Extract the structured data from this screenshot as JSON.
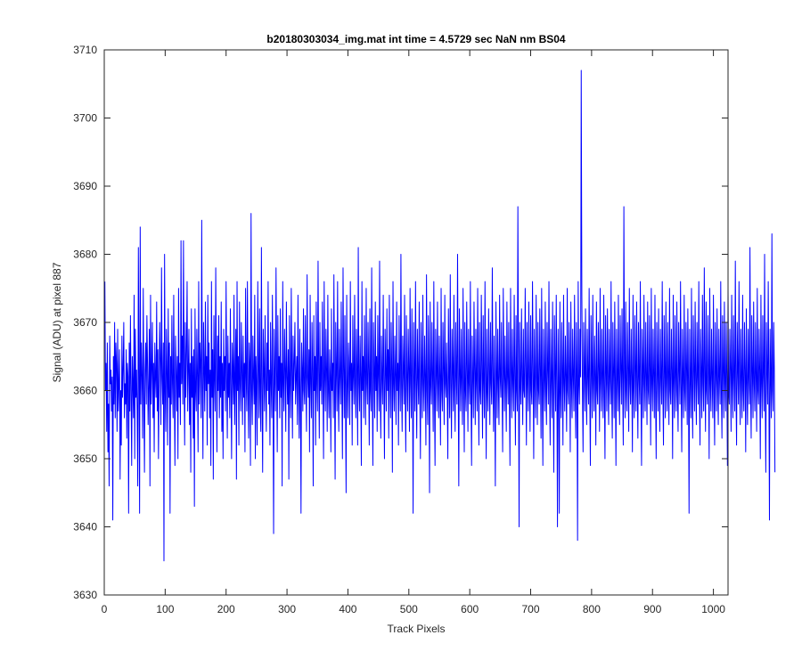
{
  "chart_data": {
    "type": "line",
    "title": "b20180303034_img.mat int time = 4.5729 sec  NaN nm BS04",
    "xlabel": "Track Pixels",
    "ylabel": "Signal (ADU) at pixel 887",
    "xlim": [
      0,
      1024
    ],
    "ylim": [
      3630,
      3710
    ],
    "xticks": [
      0,
      100,
      200,
      300,
      400,
      500,
      600,
      700,
      800,
      900,
      1000
    ],
    "yticks": [
      3630,
      3640,
      3650,
      3660,
      3670,
      3680,
      3690,
      3700,
      3710
    ],
    "xtick_labels": [
      "0",
      "100",
      "200",
      "300",
      "400",
      "500",
      "600",
      "700",
      "800",
      "900",
      "1000"
    ],
    "ytick_labels": [
      "3630",
      "3640",
      "3650",
      "3660",
      "3670",
      "3680",
      "3690",
      "3700",
      "3710"
    ],
    "grid": false,
    "line_color": "#0000ff",
    "series": [
      {
        "x_start": 1,
        "x_step": 1,
        "values": [
          3676,
          3660,
          3664,
          3654,
          3667,
          3651,
          3658,
          3646,
          3668,
          3661,
          3663,
          3657,
          3662,
          3641,
          3665,
          3658,
          3670,
          3656,
          3667,
          3664,
          3654,
          3669,
          3657,
          3661,
          3666,
          3647,
          3660,
          3652,
          3668,
          3659,
          3663,
          3670,
          3656,
          3661,
          3658,
          3666,
          3653,
          3664,
          3662,
          3642,
          3667,
          3657,
          3671,
          3660,
          3649,
          3665,
          3661,
          3656,
          3674,
          3650,
          3669,
          3659,
          3663,
          3657,
          3646,
          3681,
          3662,
          3642,
          3684,
          3658,
          3667,
          3662,
          3653,
          3675,
          3660,
          3648,
          3663,
          3667,
          3658,
          3671,
          3664,
          3655,
          3661,
          3669,
          3646,
          3674,
          3658,
          3663,
          3670,
          3656,
          3664,
          3651,
          3667,
          3662,
          3659,
          3673,
          3657,
          3666,
          3650,
          3661,
          3670,
          3664,
          3655,
          3678,
          3662,
          3658,
          3667,
          3635,
          3680,
          3660,
          3654,
          3669,
          3663,
          3652,
          3672,
          3659,
          3667,
          3642,
          3665,
          3658,
          3671,
          3661,
          3656,
          3674,
          3660,
          3649,
          3668,
          3663,
          3657,
          3665,
          3650,
          3675,
          3659,
          3664,
          3655,
          3682,
          3661,
          3668,
          3658,
          3682,
          3663,
          3652,
          3670,
          3659,
          3666,
          3676,
          3657,
          3663,
          3669,
          3655,
          3664,
          3648,
          3672,
          3659,
          3665,
          3653,
          3666,
          3643,
          3672,
          3660,
          3657,
          3669,
          3662,
          3651,
          3676,
          3658,
          3667,
          3664,
          3656,
          3685,
          3661,
          3650,
          3670,
          3663,
          3657,
          3673,
          3660,
          3665,
          3652,
          3674,
          3661,
          3667,
          3656,
          3663,
          3649,
          3676,
          3659,
          3666,
          3647,
          3671,
          3662,
          3657,
          3678,
          3663,
          3651,
          3668,
          3660,
          3671,
          3656,
          3665,
          3659,
          3673,
          3654,
          3664,
          3650,
          3669,
          3660,
          3665,
          3657,
          3676,
          3662,
          3653,
          3668,
          3659,
          3664,
          3656,
          3672,
          3661,
          3650,
          3667,
          3663,
          3658,
          3674,
          3655,
          3662,
          3669,
          3647,
          3676,
          3660,
          3665,
          3652,
          3673,
          3661,
          3657,
          3670,
          3663,
          3655,
          3668,
          3659,
          3664,
          3651,
          3675,
          3662,
          3657,
          3676,
          3660,
          3653,
          3667,
          3664,
          3649,
          3686,
          3660,
          3655,
          3668,
          3662,
          3658,
          3674,
          3650,
          3665,
          3661,
          3652,
          3676,
          3663,
          3656,
          3672,
          3659,
          3654,
          3681,
          3660,
          3648,
          3669,
          3663,
          3657,
          3671,
          3661,
          3654,
          3667,
          3660,
          3676,
          3658,
          3663,
          3652,
          3670,
          3661,
          3656,
          3674,
          3660,
          3639,
          3669,
          3662,
          3657,
          3678,
          3663,
          3651,
          3671,
          3660,
          3665,
          3656,
          3672,
          3659,
          3664,
          3646,
          3676,
          3661,
          3657,
          3669,
          3663,
          3654,
          3673,
          3662,
          3658,
          3666,
          3647,
          3671,
          3661,
          3656,
          3675,
          3663,
          3653,
          3668,
          3660,
          3664,
          3670,
          3658,
          3662,
          3665,
          3655,
          3674,
          3661,
          3653,
          3669,
          3660,
          3642,
          3667,
          3663,
          3657,
          3672,
          3660,
          3658,
          3671,
          3661,
          3654,
          3677,
          3662,
          3659,
          3666,
          3651,
          3674,
          3661,
          3656,
          3670,
          3663,
          3646,
          3671,
          3660,
          3665,
          3652,
          3673,
          3661,
          3657,
          3679,
          3663,
          3653,
          3670,
          3660,
          3665,
          3658,
          3673,
          3661,
          3650,
          3676,
          3662,
          3657,
          3669,
          3663,
          3654,
          3674,
          3660,
          3656,
          3666,
          3662,
          3651,
          3672,
          3660,
          3664,
          3656,
          3677,
          3661,
          3647,
          3670,
          3663,
          3657,
          3676,
          3660,
          3654,
          3669,
          3662,
          3658,
          3673,
          3661,
          3650,
          3678,
          3663,
          3656,
          3671,
          3659,
          3645,
          3674,
          3661,
          3656,
          3667,
          3663,
          3655,
          3676,
          3660,
          3664,
          3652,
          3671,
          3662,
          3658,
          3674,
          3661,
          3656,
          3669,
          3663,
          3652,
          3681,
          3661,
          3657,
          3668,
          3662,
          3649,
          3676,
          3660,
          3665,
          3656,
          3671,
          3662,
          3655,
          3675,
          3661,
          3658,
          3670,
          3663,
          3652,
          3672,
          3660,
          3657,
          3678,
          3661,
          3649,
          3670,
          3663,
          3656,
          3673,
          3660,
          3665,
          3654,
          3671,
          3662,
          3657,
          3679,
          3660,
          3653,
          3668,
          3662,
          3658,
          3674,
          3661,
          3650,
          3669,
          3663,
          3657,
          3672,
          3660,
          3666,
          3653,
          3674,
          3662,
          3656,
          3670,
          3663,
          3648,
          3676,
          3661,
          3657,
          3668,
          3662,
          3655,
          3673,
          3660,
          3664,
          3652,
          3671,
          3662,
          3657,
          3680,
          3661,
          3654,
          3668,
          3663,
          3658,
          3674,
          3660,
          3651,
          3671,
          3662,
          3657,
          3669,
          3663,
          3654,
          3675,
          3661,
          3656,
          3672,
          3662,
          3642,
          3670,
          3663,
          3657,
          3676,
          3661,
          3653,
          3669,
          3662,
          3658,
          3673,
          3660,
          3650,
          3670,
          3663,
          3656,
          3674,
          3661,
          3657,
          3668,
          3662,
          3652,
          3677,
          3660,
          3655,
          3671,
          3663,
          3645,
          3673,
          3661,
          3658,
          3670,
          3662,
          3654,
          3676,
          3660,
          3649,
          3669,
          3663,
          3657,
          3673,
          3661,
          3656,
          3668,
          3662,
          3652,
          3675,
          3660,
          3657,
          3670,
          3663,
          3655,
          3674,
          3661,
          3659,
          3667,
          3660,
          3650,
          3672,
          3662,
          3656,
          3677,
          3661,
          3653,
          3669,
          3663,
          3657,
          3674,
          3660,
          3654,
          3670,
          3662,
          3658,
          3680,
          3661,
          3646,
          3672,
          3663,
          3657,
          3669,
          3661,
          3655,
          3675,
          3662,
          3651,
          3670,
          3660,
          3657,
          3673,
          3663,
          3654,
          3669,
          3661,
          3658,
          3676,
          3660,
          3649,
          3668,
          3662,
          3656,
          3673,
          3663,
          3655,
          3669,
          3661,
          3657,
          3675,
          3662,
          3652,
          3670,
          3660,
          3658,
          3674,
          3663,
          3653,
          3671,
          3661,
          3656,
          3676,
          3662,
          3650,
          3669,
          3660,
          3657,
          3672,
          3663,
          3655,
          3670,
          3661,
          3658,
          3678,
          3662,
          3654,
          3668,
          3660,
          3646,
          3673,
          3663,
          3656,
          3669,
          3661,
          3655,
          3674,
          3662,
          3659,
          3670,
          3660,
          3651,
          3675,
          3663,
          3657,
          3668,
          3661,
          3654,
          3673,
          3662,
          3658,
          3670,
          3660,
          3649,
          3675,
          3663,
          3656,
          3669,
          3661,
          3657,
          3674,
          3662,
          3652,
          3671,
          3660,
          3657,
          3687,
          3663,
          3640,
          3670,
          3661,
          3658,
          3672,
          3662,
          3655,
          3669,
          3660,
          3659,
          3675,
          3663,
          3652,
          3670,
          3661,
          3657,
          3673,
          3662,
          3654,
          3671,
          3660,
          3658,
          3676,
          3663,
          3650,
          3669,
          3661,
          3656,
          3674,
          3662,
          3655,
          3670,
          3660,
          3658,
          3672,
          3663,
          3653,
          3675,
          3661,
          3649,
          3669,
          3662,
          3657,
          3673,
          3660,
          3655,
          3670,
          3663,
          3658,
          3676,
          3661,
          3652,
          3669,
          3662,
          3656,
          3673,
          3660,
          3648,
          3671,
          3663,
          3657,
          3674,
          3661,
          3640,
          3669,
          3662,
          3642,
          3673,
          3660,
          3656,
          3670,
          3663,
          3652,
          3674,
          3661,
          3657,
          3668,
          3662,
          3654,
          3675,
          3660,
          3658,
          3670,
          3663,
          3651,
          3673,
          3661,
          3656,
          3669,
          3662,
          3657,
          3674,
          3660,
          3653,
          3670,
          3663,
          3638,
          3676,
          3661,
          3658,
          3669,
          3662,
          3707,
          3674,
          3660,
          3651,
          3670,
          3663,
          3657,
          3672,
          3661,
          3655,
          3669,
          3662,
          3658,
          3675,
          3660,
          3649,
          3671,
          3663,
          3656,
          3674,
          3661,
          3657,
          3668,
          3662,
          3652,
          3673,
          3660,
          3658,
          3670,
          3663,
          3654,
          3675,
          3661,
          3657,
          3669,
          3662,
          3656,
          3674,
          3660,
          3650,
          3671,
          3663,
          3657,
          3672,
          3661,
          3655,
          3669,
          3662,
          3658,
          3676,
          3660,
          3653,
          3670,
          3663,
          3656,
          3673,
          3661,
          3649,
          3669,
          3662,
          3657,
          3674,
          3660,
          3655,
          3671,
          3663,
          3658,
          3672,
          3661,
          3652,
          3687,
          3662,
          3656,
          3673,
          3660,
          3657,
          3670,
          3663,
          3654,
          3675,
          3661,
          3658,
          3669,
          3662,
          3651,
          3674,
          3660,
          3656,
          3671,
          3663,
          3657,
          3673,
          3661,
          3653,
          3670,
          3662,
          3658,
          3676,
          3660,
          3649,
          3669,
          3663,
          3656,
          3674,
          3661,
          3657,
          3670,
          3662,
          3655,
          3673,
          3660,
          3658,
          3671,
          3663,
          3652,
          3675,
          3661,
          3657,
          3669,
          3662,
          3656,
          3674,
          3660,
          3650,
          3670,
          3663,
          3657,
          3672,
          3661,
          3654,
          3669,
          3662,
          3658,
          3676,
          3660,
          3652,
          3671,
          3663,
          3656,
          3673,
          3661,
          3657,
          3670,
          3662,
          3655,
          3675,
          3660,
          3658,
          3669,
          3663,
          3650,
          3674,
          3661,
          3656,
          3671,
          3662,
          3657,
          3673,
          3660,
          3654,
          3670,
          3663,
          3658,
          3676,
          3661,
          3651,
          3669,
          3662,
          3656,
          3674,
          3660,
          3657,
          3670,
          3663,
          3655,
          3672,
          3661,
          3642,
          3669,
          3662,
          3656,
          3675,
          3660,
          3653,
          3671,
          3663,
          3657,
          3673,
          3661,
          3655,
          3670,
          3662,
          3658,
          3676,
          3660,
          3652,
          3669,
          3663,
          3656,
          3674,
          3661,
          3657,
          3678,
          3662,
          3654,
          3673,
          3660,
          3658,
          3671,
          3663,
          3650,
          3675,
          3661,
          3657,
          3669,
          3662,
          3656,
          3674,
          3660,
          3652,
          3670,
          3663,
          3657,
          3672,
          3661,
          3655,
          3669,
          3662,
          3658,
          3676,
          3660,
          3653,
          3671,
          3663,
          3656,
          3673,
          3661,
          3657,
          3670,
          3662,
          3649,
          3675,
          3660,
          3658,
          3669,
          3663,
          3654,
          3674,
          3661,
          3656,
          3671,
          3662,
          3657,
          3679,
          3660,
          3652,
          3670,
          3663,
          3658,
          3676,
          3661,
          3655,
          3669,
          3662,
          3656,
          3674,
          3660,
          3657,
          3670,
          3663,
          3651,
          3672,
          3661,
          3655,
          3669,
          3662,
          3658,
          3681,
          3660,
          3653,
          3671,
          3663,
          3656,
          3673,
          3661,
          3657,
          3670,
          3662,
          3654,
          3675,
          3660,
          3658,
          3669,
          3663,
          3650,
          3674,
          3661,
          3656,
          3671,
          3662,
          3657,
          3680,
          3660,
          3648,
          3670,
          3663,
          3658,
          3676,
          3661,
          3641,
          3669,
          3662,
          3656,
          3683,
          3660,
          3657,
          3670,
          3663,
          3648
        ]
      }
    ]
  }
}
